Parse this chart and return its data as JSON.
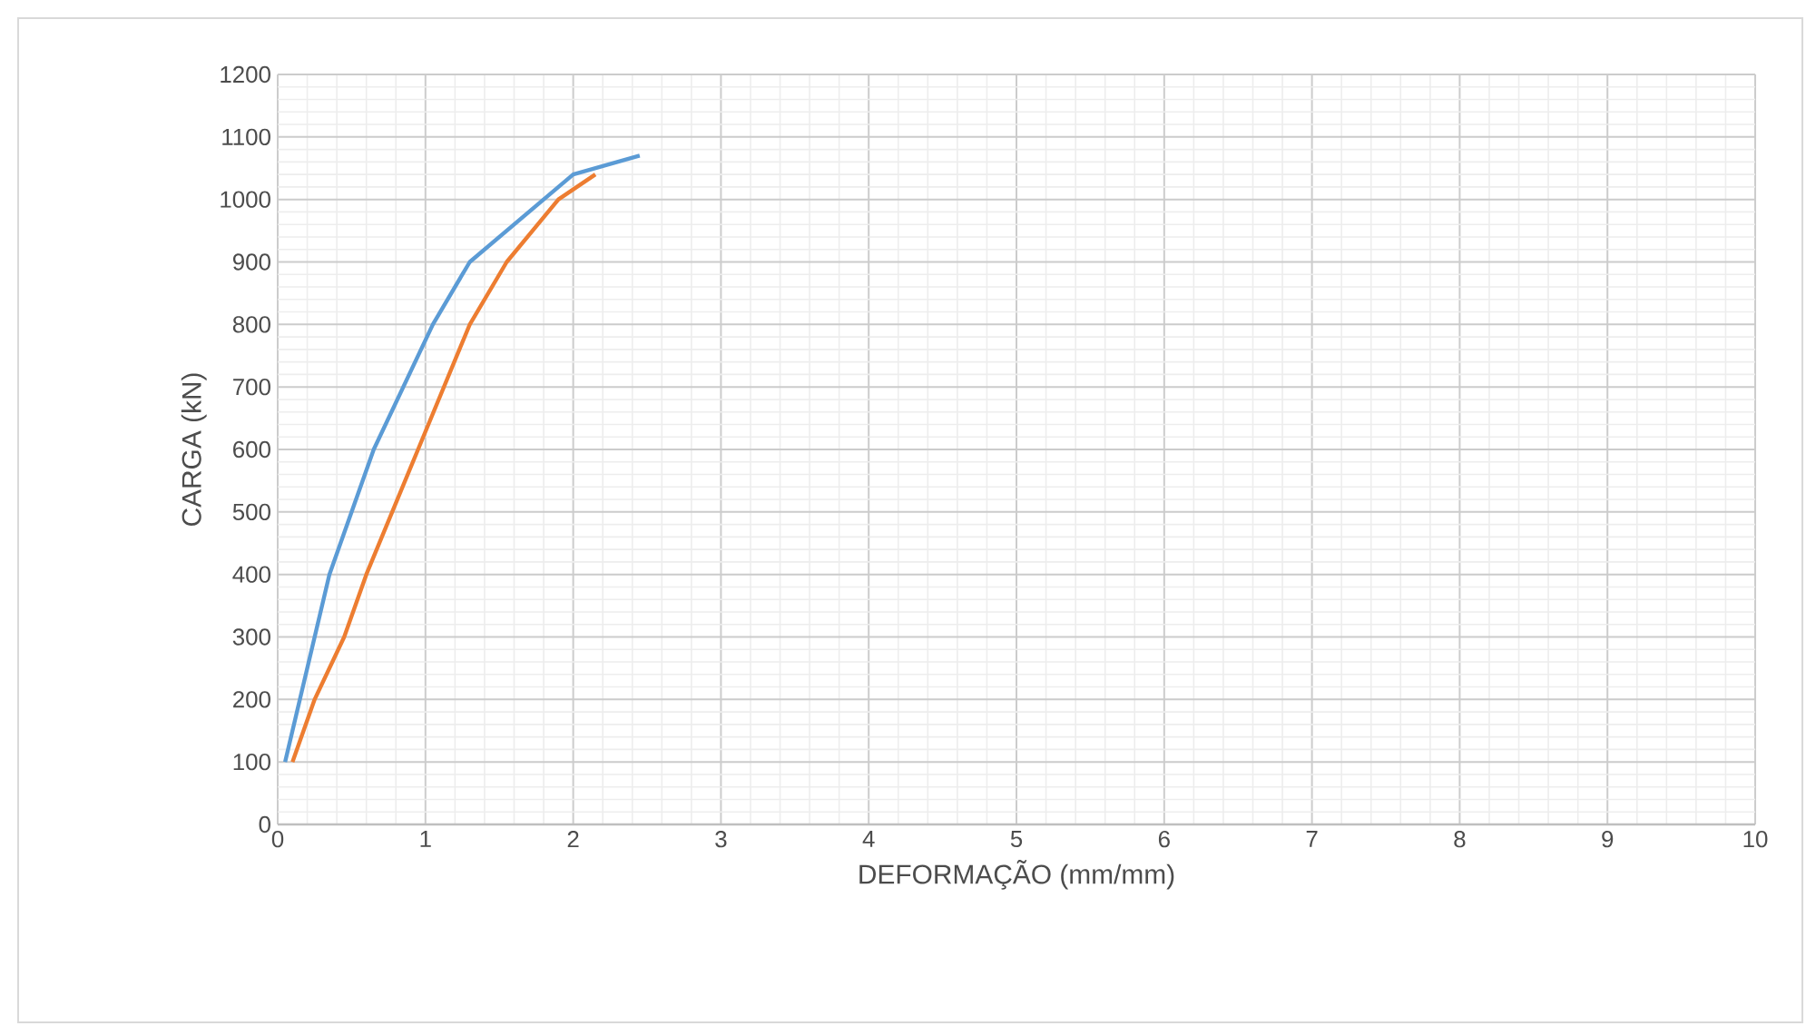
{
  "chart_data": {
    "type": "line",
    "xlabel": "DEFORMAÇÃO (mm/mm)",
    "ylabel": "CARGA (kN)",
    "xlim": [
      0,
      10
    ],
    "xticks": [
      0,
      1,
      2,
      3,
      4,
      5,
      6,
      7,
      8,
      9,
      10
    ],
    "ylim": [
      0,
      1200
    ],
    "yticks": [
      0,
      100,
      200,
      300,
      400,
      500,
      600,
      700,
      800,
      900,
      1000,
      1100,
      1200
    ],
    "grid": true,
    "marker": "none",
    "line_style": "solid",
    "series": [
      {
        "color": "#5b9bd5",
        "x": [
          0.05,
          0.35,
          0.65,
          1.05,
          1.3,
          2.0,
          2.45
        ],
        "values": [
          100,
          400,
          600,
          800,
          900,
          1040,
          1070
        ]
      },
      {
        "color": "#ed7d31",
        "x": [
          0.1,
          0.25,
          0.45,
          0.6,
          0.95,
          1.3,
          1.55,
          1.9,
          2.15
        ],
        "values": [
          100,
          200,
          300,
          400,
          600,
          800,
          900,
          1000,
          1040
        ]
      }
    ]
  }
}
